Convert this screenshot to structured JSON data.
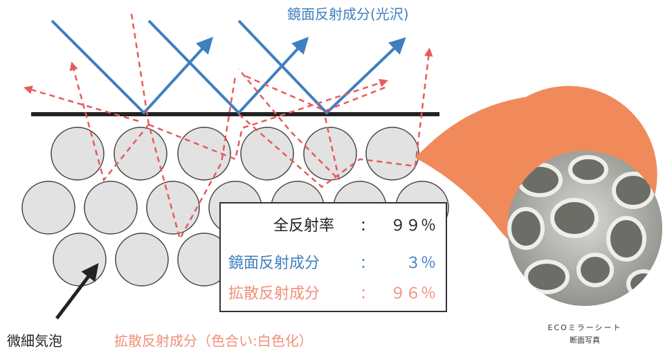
{
  "top_label": "鏡面反射成分(光沢)",
  "box": {
    "rows": [
      {
        "label": "全反射率",
        "value": "９９％"
      },
      {
        "label": "鏡面反射成分",
        "value": "３％"
      },
      {
        "label": "拡散反射成分",
        "value": "９６％"
      }
    ]
  },
  "bubble_label": "微細気泡",
  "diffuse_label": "拡散反射成分（色合い:白色化）",
  "photo_caption": {
    "line1": "ECOミラーシート",
    "line2": "断面写真"
  }
}
